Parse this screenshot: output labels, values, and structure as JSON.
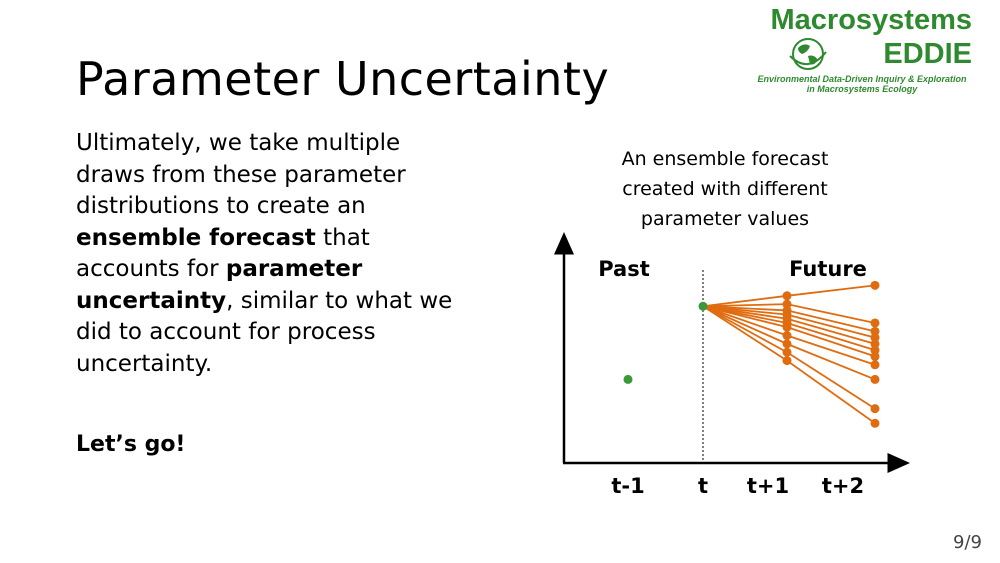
{
  "slide": {
    "title": "Parameter Uncertainty",
    "body": {
      "p1": "Ultimately, we take multiple draws from these parameter distributions to create an ",
      "b1": "ensemble forecast",
      "p2": " that accounts for ",
      "b2": "parameter uncertainty",
      "p3": ", similar to what we did to account for process uncertainty."
    },
    "cta": "Let’s go!",
    "page_number": "9/9"
  },
  "logo": {
    "line1": "Macrosystems",
    "line2": "EDDIE",
    "subtitle1": "Environmental Data-Driven Inquiry & Exploration",
    "subtitle2": "in Macrosystems Ecology",
    "icon": "globe-icon",
    "color": "#2f8a2f"
  },
  "diagram": {
    "caption": "An ensemble forecast created with different parameter values",
    "label_past": "Past",
    "label_future": "Future",
    "x_ticks": [
      "t-1",
      "t",
      "t+1",
      "t+2"
    ],
    "observed_color": "#3a9a3a",
    "ensemble_color": "#e06c10",
    "observed": [
      {
        "step": "t-1",
        "value": 0.4
      },
      {
        "step": "t",
        "value": 0.75
      }
    ],
    "ensemble_members": [
      [
        0.75,
        0.8,
        0.85
      ],
      [
        0.75,
        0.76,
        0.67
      ],
      [
        0.75,
        0.73,
        0.63
      ],
      [
        0.75,
        0.71,
        0.6
      ],
      [
        0.75,
        0.69,
        0.57
      ],
      [
        0.75,
        0.67,
        0.54
      ],
      [
        0.75,
        0.65,
        0.51
      ],
      [
        0.75,
        0.61,
        0.47
      ],
      [
        0.75,
        0.57,
        0.4
      ],
      [
        0.75,
        0.53,
        0.26
      ],
      [
        0.75,
        0.49,
        0.19
      ]
    ]
  }
}
